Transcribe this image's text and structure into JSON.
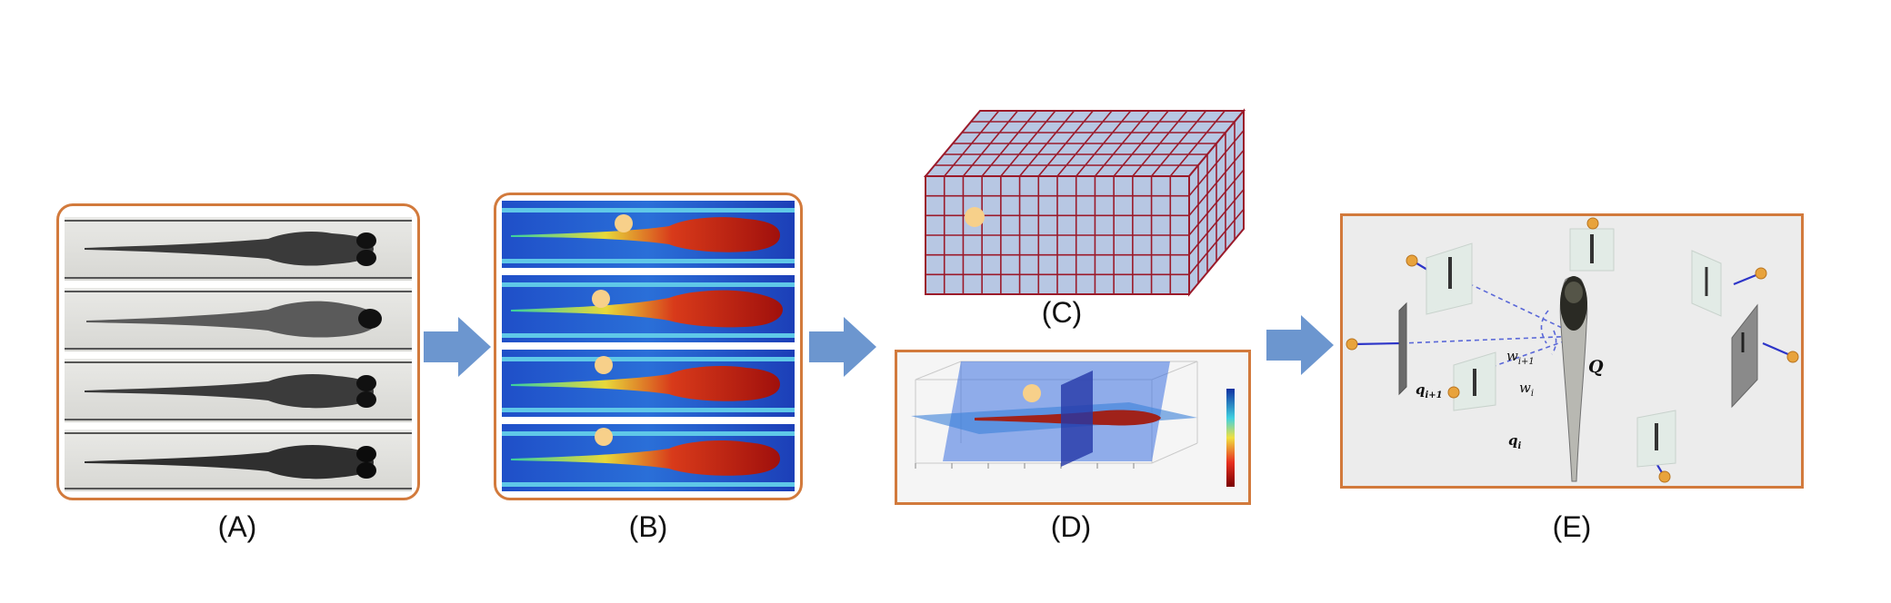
{
  "captions": {
    "a": "(A)",
    "b": "(B)",
    "c": "(C)",
    "d": "(D)",
    "e": "(E)"
  },
  "panel_e_labels": {
    "q": "Q",
    "w_next": "w",
    "w_next_sub": "i+1",
    "w_i": "w",
    "w_i_sub": "i",
    "q_next": "q",
    "q_next_sub": "i+1",
    "q_i": "q",
    "q_i_sub": "i"
  },
  "colors": {
    "panel_border": "#d27a3c",
    "arrow": "#6c96cf",
    "grid_face": "#b7c7e3",
    "grid_line": "#9b1a2a",
    "marker": "#f7d08a",
    "camera_dot": "#e8a33c",
    "ray": "#2d35c8"
  }
}
